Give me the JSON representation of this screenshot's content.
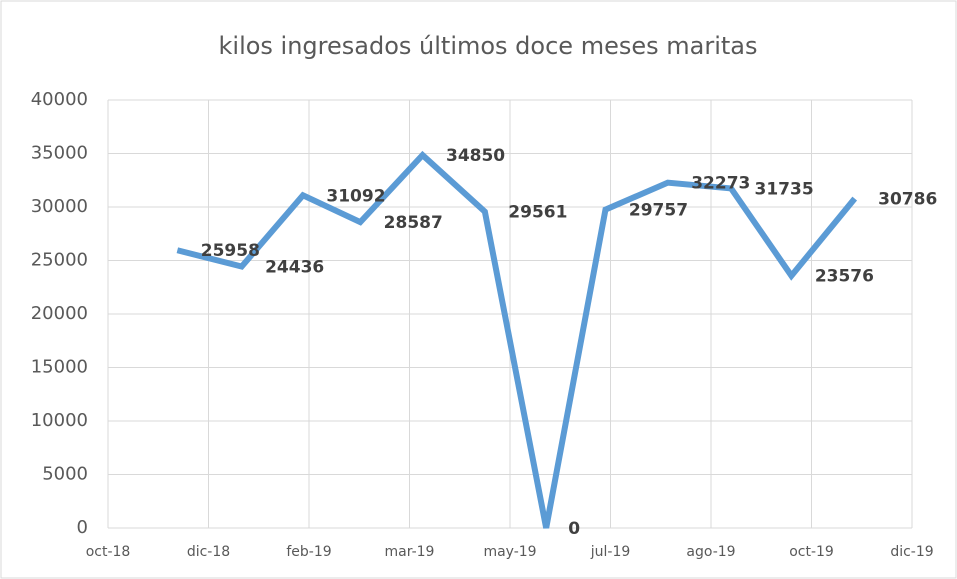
{
  "chart_data": {
    "type": "line",
    "title": "kilos ingresados últimos doce meses maritas",
    "x": [
      0.69,
      1.33,
      1.94,
      2.51,
      3.13,
      3.75,
      4.36,
      4.95,
      5.57,
      6.2,
      6.8,
      7.43
    ],
    "series": [
      {
        "name": "kilos",
        "color": "#5b9bd5",
        "values": [
          25958,
          24436,
          31092,
          28587,
          34850,
          29561,
          0,
          29757,
          32273,
          31735,
          23576,
          30786
        ]
      }
    ],
    "xlim": [
      0,
      8
    ],
    "xticks": [
      {
        "value": 0,
        "label": "oct-18"
      },
      {
        "value": 1,
        "label": "dic-18"
      },
      {
        "value": 2,
        "label": "feb-19"
      },
      {
        "value": 3,
        "label": "mar-19"
      },
      {
        "value": 4,
        "label": "may-19"
      },
      {
        "value": 5,
        "label": "jul-19"
      },
      {
        "value": 6,
        "label": "ago-19"
      },
      {
        "value": 7,
        "label": "oct-19"
      },
      {
        "value": 8,
        "label": "dic-19"
      }
    ],
    "ylim": [
      0,
      40000
    ],
    "yticks": [
      0,
      5000,
      10000,
      15000,
      20000,
      25000,
      30000,
      35000,
      40000
    ],
    "grid": true
  }
}
